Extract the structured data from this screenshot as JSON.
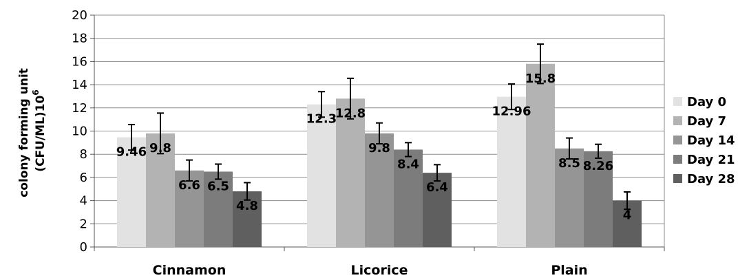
{
  "chart_data": {
    "type": "bar",
    "categories": [
      "Cinnamon",
      "Licorice",
      "Plain"
    ],
    "series": [
      {
        "name": "Day 0",
        "values": [
          9.46,
          12.3,
          12.96
        ],
        "errors": [
          1.1,
          1.1,
          1.1
        ],
        "labels": [
          "9.46",
          "12.3",
          "12.96"
        ],
        "color": "#e2e2e2"
      },
      {
        "name": "Day 7",
        "values": [
          9.8,
          12.8,
          15.8
        ],
        "errors": [
          1.75,
          1.75,
          1.7
        ],
        "labels": [
          "9.8",
          "12.8",
          "15.8"
        ],
        "color": "#b3b3b3"
      },
      {
        "name": "Day 14",
        "values": [
          6.6,
          9.8,
          8.5
        ],
        "errors": [
          0.9,
          0.9,
          0.9
        ],
        "labels": [
          "6.6",
          "9.8",
          "8.5"
        ],
        "color": "#959595"
      },
      {
        "name": "Day 21",
        "values": [
          6.5,
          8.4,
          8.26
        ],
        "errors": [
          0.65,
          0.6,
          0.6
        ],
        "labels": [
          "6.5",
          "8.4",
          "8.26"
        ],
        "color": "#7c7c7c"
      },
      {
        "name": "Day 28",
        "values": [
          4.8,
          6.4,
          4.0
        ],
        "errors": [
          0.75,
          0.7,
          0.75
        ],
        "labels": [
          "4.8",
          "6.4",
          "4"
        ],
        "color": "#5f5f5f"
      }
    ],
    "ylabel_line1": "colony forming unit",
    "ylabel_line2": "(CFU/ML)10",
    "ylabel_superscript": "6",
    "xlabel": "",
    "ylim": [
      0,
      20
    ],
    "yticks": [
      0,
      2,
      4,
      6,
      8,
      10,
      12,
      14,
      16,
      18,
      20
    ],
    "grid": true,
    "legend_position": "right"
  }
}
